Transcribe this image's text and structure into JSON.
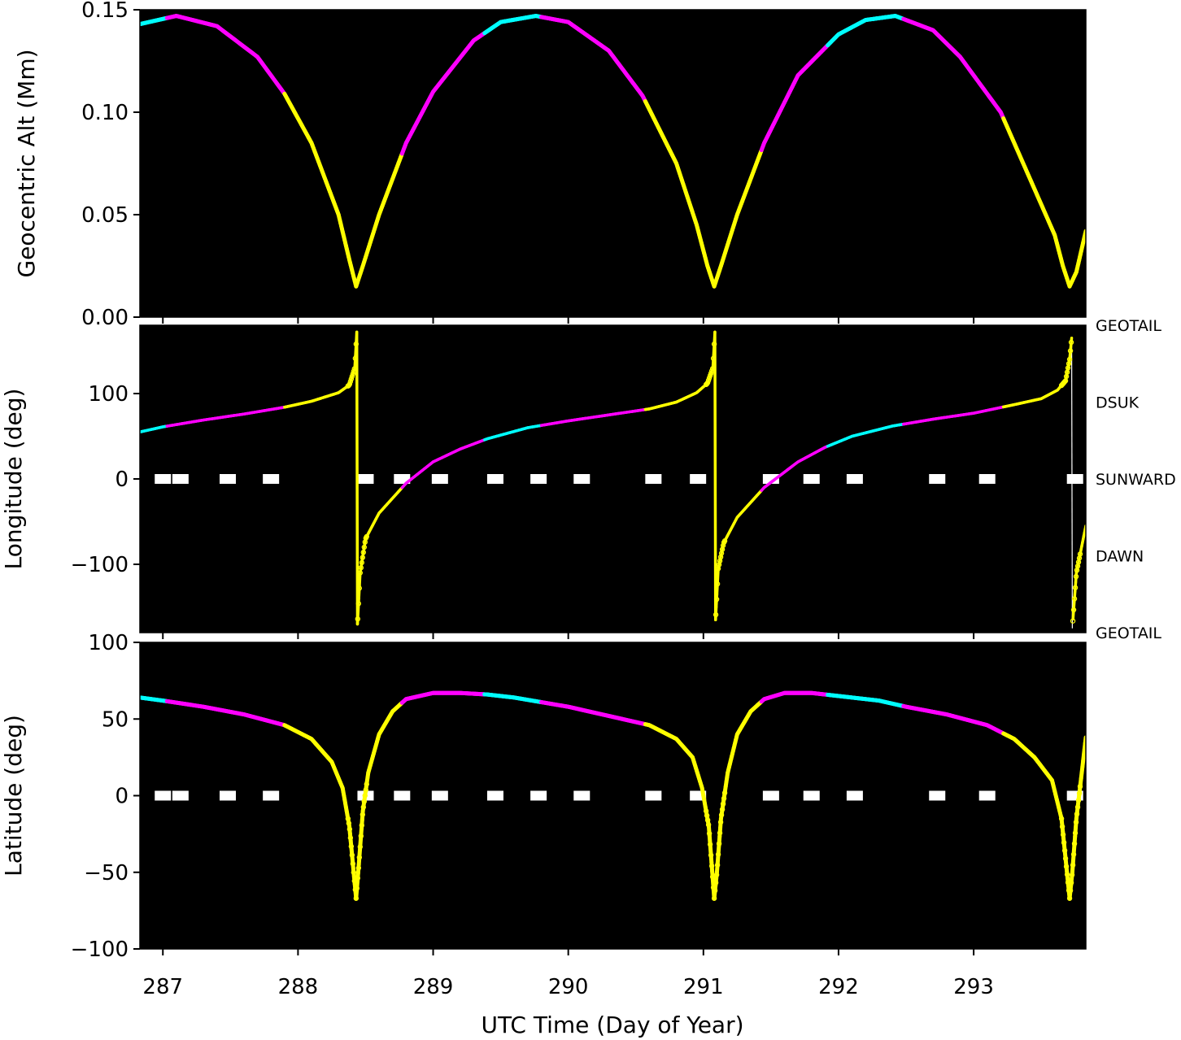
{
  "chart_data": {
    "type": "line",
    "colors": {
      "background": "#000000",
      "yellow": "#ffff00",
      "magenta": "#ff00ff",
      "cyan": "#00ffff",
      "marker": "#ffffff",
      "wrap_line": "#ffffff"
    },
    "xlabel": "UTC Time (Day of Year)",
    "xlim": [
      286.83,
      293.83
    ],
    "xticks": [
      287,
      288,
      289,
      290,
      291,
      292,
      293
    ],
    "xtick_labels": [
      "287",
      "288",
      "289",
      "290",
      "291",
      "292",
      "293"
    ],
    "segment_legend": "color of trace changes along orbit: yellow, magenta, cyan segments",
    "panels": [
      {
        "id": "altitude",
        "ylabel": "Geocentric Alt (Mm)",
        "ylim": [
          0,
          0.15
        ],
        "yticks": [
          0,
          0.05,
          0.1,
          0.15
        ],
        "ytick_labels": [
          "0.00",
          "0.05",
          "0.10",
          "0.15"
        ],
        "description": "Periodic altitude; perigee ~0.015 Mm at days 288.43, 291.08, 293.71; apogee ~0.147 Mm near 287.1, 289.76, 292.42"
      },
      {
        "id": "longitude",
        "ylabel": "Longitude (deg)",
        "ylim": [
          -180,
          180
        ],
        "yticks": [
          -100,
          0,
          100
        ],
        "ytick_labels": [
          "−100",
          "0",
          "100"
        ],
        "right_labels": [
          {
            "value": 180,
            "text": "GEOTAIL"
          },
          {
            "value": 90,
            "text": "DSUK"
          },
          {
            "value": 0,
            "text": "SUNWARD"
          },
          {
            "value": -90,
            "text": "DAWN"
          },
          {
            "value": -180,
            "text": "GEOTAIL"
          }
        ],
        "markers_y": 0,
        "wrap_days": [
          288.43,
          291.08,
          293.71
        ]
      },
      {
        "id": "latitude",
        "ylabel": "Latitude (deg)",
        "ylim": [
          -100,
          100
        ],
        "yticks": [
          -100,
          -50,
          0,
          50,
          100
        ],
        "ytick_labels": [
          "−100",
          "−50",
          "0",
          "50",
          "100"
        ],
        "markers_y": 0
      }
    ],
    "marker_days": [
      287.0,
      287.13,
      287.48,
      287.8,
      288.5,
      288.77,
      289.05,
      289.46,
      289.78,
      290.1,
      290.63,
      290.96,
      291.5,
      291.8,
      292.12,
      292.73,
      293.1,
      293.75
    ],
    "series": [
      {
        "name": "altitude",
        "x": [
          286.83,
          287.1,
          287.4,
          287.7,
          287.9,
          288.1,
          288.3,
          288.38,
          288.43,
          288.48,
          288.6,
          288.8,
          289.0,
          289.3,
          289.5,
          289.76,
          290.0,
          290.3,
          290.55,
          290.8,
          290.95,
          291.03,
          291.08,
          291.13,
          291.25,
          291.45,
          291.7,
          292.0,
          292.2,
          292.42,
          292.7,
          292.9,
          293.2,
          293.4,
          293.6,
          293.66,
          293.71,
          293.76,
          293.83
        ],
        "y": [
          0.143,
          0.147,
          0.142,
          0.127,
          0.109,
          0.085,
          0.05,
          0.028,
          0.015,
          0.025,
          0.05,
          0.085,
          0.11,
          0.135,
          0.144,
          0.147,
          0.144,
          0.13,
          0.108,
          0.075,
          0.045,
          0.025,
          0.015,
          0.025,
          0.05,
          0.085,
          0.118,
          0.138,
          0.145,
          0.147,
          0.14,
          0.127,
          0.1,
          0.07,
          0.04,
          0.025,
          0.015,
          0.022,
          0.042
        ],
        "color_changes": [
          {
            "until": 287.03,
            "color": "#00ffff"
          },
          {
            "until": 287.9,
            "color": "#ff00ff"
          },
          {
            "until": 288.77,
            "color": "#ffff00"
          },
          {
            "until": 289.38,
            "color": "#ff00ff"
          },
          {
            "until": 289.8,
            "color": "#00ffff"
          },
          {
            "until": 290.57,
            "color": "#ff00ff"
          },
          {
            "until": 291.43,
            "color": "#ffff00"
          },
          {
            "until": 291.92,
            "color": "#ff00ff"
          },
          {
            "until": 292.48,
            "color": "#00ffff"
          },
          {
            "until": 293.22,
            "color": "#ff00ff"
          },
          {
            "until": 293.83,
            "color": "#ffff00"
          }
        ]
      },
      {
        "name": "longitude",
        "x": [
          286.83,
          287.0,
          287.3,
          287.6,
          287.9,
          288.1,
          288.3,
          288.38,
          288.42,
          288.435,
          288.44,
          288.46,
          288.5,
          288.6,
          288.8,
          289.0,
          289.2,
          289.4,
          289.7,
          290.0,
          290.3,
          290.6,
          290.8,
          290.95,
          291.03,
          291.07,
          291.085,
          291.09,
          291.11,
          291.15,
          291.25,
          291.45,
          291.7,
          291.9,
          292.1,
          292.4,
          292.7,
          293.0,
          293.3,
          293.5,
          293.62,
          293.68,
          293.71,
          293.725,
          293.73,
          293.76,
          293.83
        ],
        "y": [
          55,
          61,
          69,
          76,
          84,
          91,
          101,
          110,
          130,
          172,
          -170,
          -110,
          -70,
          -40,
          -5,
          20,
          35,
          47,
          60,
          68,
          75,
          82,
          90,
          101,
          112,
          130,
          172,
          -165,
          -105,
          -75,
          -45,
          -10,
          20,
          37,
          50,
          62,
          70,
          77,
          87,
          94,
          104,
          115,
          140,
          165,
          -175,
          -110,
          -55
        ],
        "wrap_after_index": [
          9,
          26,
          43
        ]
      },
      {
        "name": "latitude",
        "x": [
          286.83,
          287.0,
          287.3,
          287.6,
          287.9,
          288.1,
          288.25,
          288.33,
          288.38,
          288.43,
          288.45,
          288.48,
          288.52,
          288.6,
          288.7,
          288.8,
          289.0,
          289.2,
          289.4,
          289.6,
          289.8,
          290.0,
          290.3,
          290.6,
          290.8,
          290.92,
          290.99,
          291.04,
          291.08,
          291.1,
          291.13,
          291.18,
          291.25,
          291.35,
          291.45,
          291.6,
          291.8,
          292.0,
          292.3,
          292.5,
          292.8,
          293.1,
          293.3,
          293.45,
          293.58,
          293.65,
          293.71,
          293.73,
          293.76,
          293.8,
          293.83
        ],
        "y": [
          64,
          62,
          58,
          53,
          46,
          37,
          22,
          5,
          -20,
          -67,
          -45,
          -10,
          15,
          40,
          55,
          63,
          67,
          67,
          66,
          64,
          61,
          58,
          52,
          46,
          37,
          25,
          5,
          -20,
          -67,
          -50,
          -15,
          15,
          40,
          55,
          63,
          67,
          67,
          65,
          62,
          58,
          53,
          46,
          37,
          25,
          10,
          -15,
          -67,
          -50,
          -15,
          15,
          38
        ]
      }
    ]
  }
}
